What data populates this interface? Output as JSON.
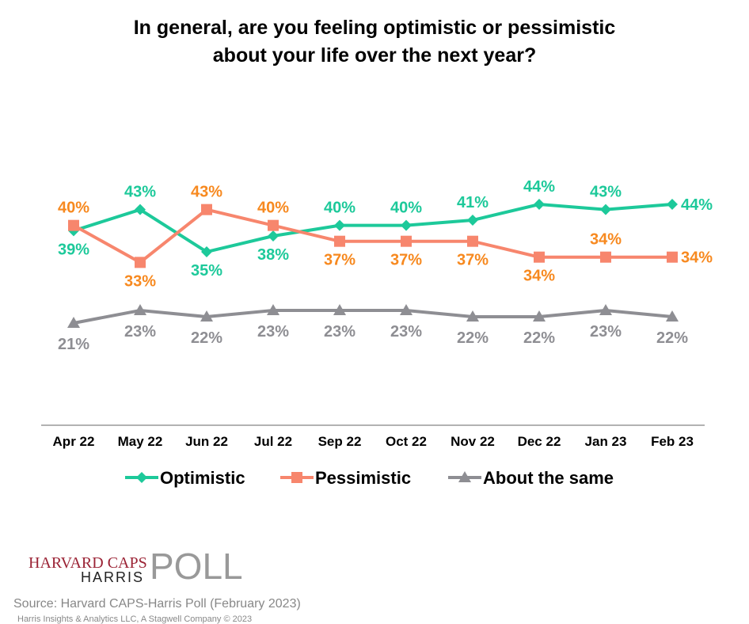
{
  "chart_data": {
    "type": "line",
    "title": [
      "In general, are you feeling optimistic or pessimistic",
      "about your life over the next year?"
    ],
    "categories": [
      "Apr 22",
      "May 22",
      "Jun 22",
      "Jul 22",
      "Sep 22",
      "Oct 22",
      "Nov 22",
      "Dec 22",
      "Jan 23",
      "Feb 23"
    ],
    "series": [
      {
        "name": "Optimistic",
        "color": "#1dc99a",
        "label_color": "#1dc99a",
        "marker": "diamond",
        "values": [
          39,
          43,
          35,
          38,
          40,
          40,
          41,
          44,
          43,
          44
        ]
      },
      {
        "name": "Pessimistic",
        "color": "#f7866d",
        "label_color": "#f7891f",
        "marker": "square",
        "values": [
          40,
          33,
          43,
          40,
          37,
          37,
          37,
          34,
          34,
          34
        ]
      },
      {
        "name": "About the same",
        "color": "#8e8e93",
        "label_color": "#8e8e93",
        "marker": "triangle",
        "values": [
          21,
          23,
          22,
          23,
          23,
          23,
          22,
          22,
          23,
          22
        ]
      }
    ],
    "value_suffix": "%",
    "legend": "bottom",
    "grid": false
  },
  "logo": {
    "line1": "HARVARD CAPS",
    "line2": "HARRIS",
    "line3": "POLL"
  },
  "source": "Source: Harvard CAPS-Harris Poll (February 2023)",
  "copyright": "Harris Insights & Analytics LLC, A Stagwell Company © 2023"
}
